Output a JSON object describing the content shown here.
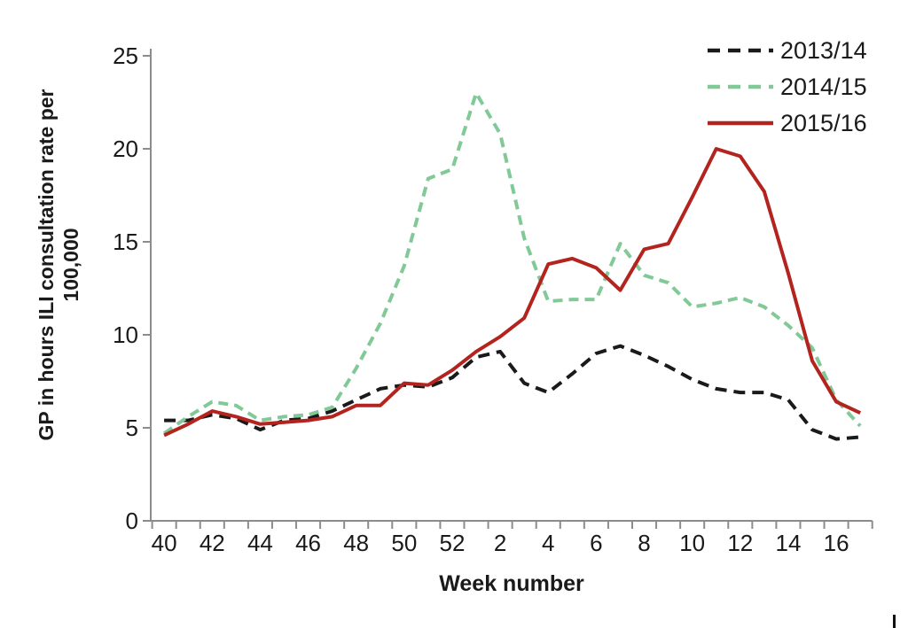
{
  "chart_data": {
    "type": "line",
    "title": "",
    "xlabel": "Week number",
    "ylabel": "GP in hours ILI consultation rate per 100,000",
    "ylabel_lines": [
      "GP in hours ILI consultation rate per",
      "100,000"
    ],
    "categories": [
      "40",
      "41",
      "42",
      "43",
      "44",
      "45",
      "46",
      "47",
      "48",
      "49",
      "50",
      "51",
      "52",
      "1",
      "2",
      "3",
      "4",
      "5",
      "6",
      "7",
      "8",
      "9",
      "10",
      "11",
      "12",
      "13",
      "14",
      "15",
      "16",
      "17"
    ],
    "x_tick_labels_visible": [
      "40",
      "42",
      "44",
      "46",
      "48",
      "50",
      "52",
      "2",
      "4",
      "6",
      "8",
      "10",
      "12",
      "14",
      "16"
    ],
    "x_label_every": 2,
    "y_ticks": [
      0,
      5,
      10,
      15,
      20,
      25
    ],
    "ylim": [
      0,
      25
    ],
    "grid": false,
    "legend_position": "top-right",
    "axis_color": "#8c8c8c",
    "series": [
      {
        "name": "2013/14",
        "color": "#1a1a1a",
        "style": "dashed",
        "values": [
          5.4,
          5.4,
          5.7,
          5.5,
          4.9,
          5.4,
          5.5,
          5.9,
          6.5,
          7.1,
          7.3,
          7.2,
          7.7,
          8.8,
          9.1,
          7.4,
          6.9,
          7.9,
          9.0,
          9.4,
          8.9,
          8.3,
          7.6,
          7.1,
          6.9,
          6.9,
          6.5,
          4.9,
          4.4,
          4.5
        ]
      },
      {
        "name": "2014/15",
        "color": "#82c998",
        "style": "dashed",
        "values": [
          4.7,
          5.6,
          6.4,
          6.2,
          5.4,
          5.6,
          5.7,
          6.1,
          8.2,
          10.6,
          13.7,
          18.4,
          18.9,
          23.0,
          20.8,
          15.2,
          11.8,
          11.9,
          11.9,
          14.9,
          13.2,
          12.8,
          11.5,
          11.7,
          12.0,
          11.5,
          10.5,
          9.3,
          6.5,
          5.1
        ]
      },
      {
        "name": "2015/16",
        "color": "#b3241f",
        "style": "solid",
        "values": [
          4.6,
          5.2,
          5.9,
          5.6,
          5.2,
          5.3,
          5.4,
          5.6,
          6.2,
          6.2,
          7.4,
          7.3,
          8.1,
          9.1,
          9.9,
          10.9,
          13.8,
          14.1,
          13.6,
          12.4,
          14.6,
          14.9,
          17.4,
          20.0,
          19.6,
          17.7,
          13.3,
          8.6,
          6.4,
          5.8
        ]
      }
    ]
  }
}
